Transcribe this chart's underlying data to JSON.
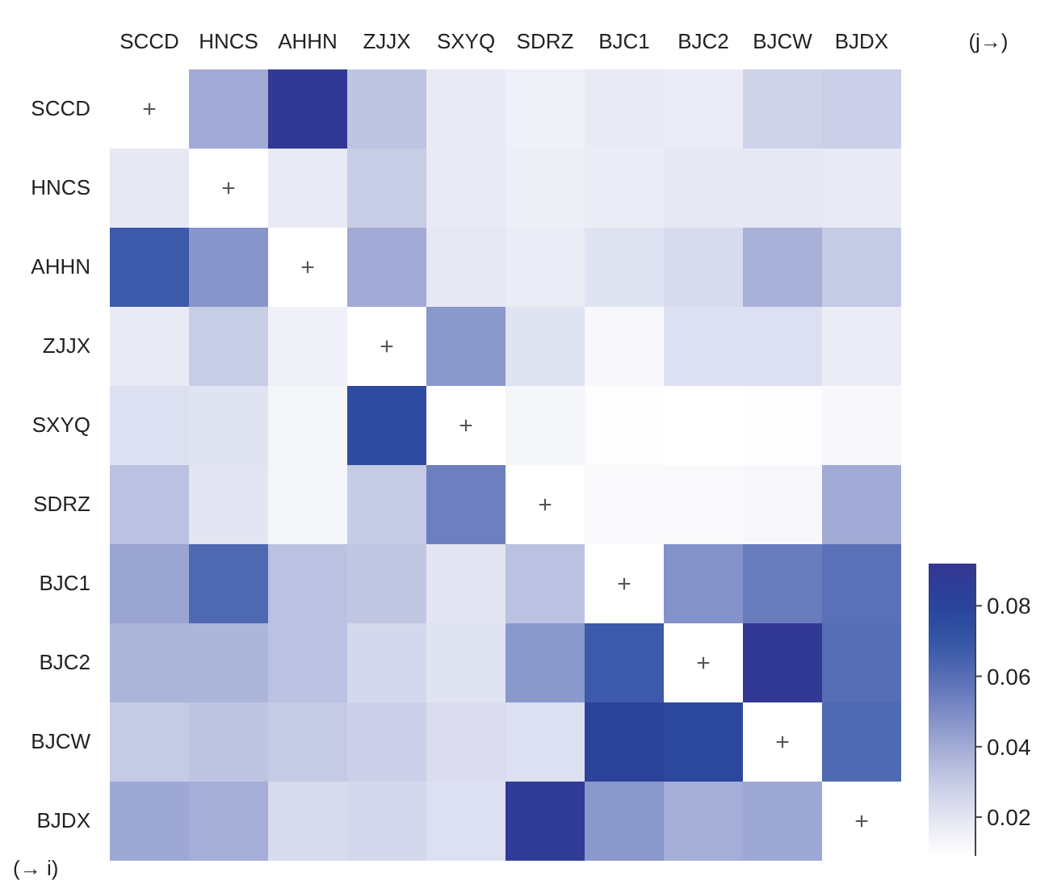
{
  "chart_data": {
    "type": "heatmap",
    "categories": [
      "SCCD",
      "HNCS",
      "AHHN",
      "ZJJX",
      "SXYQ",
      "SDRZ",
      "BJC1",
      "BJC2",
      "BJCW",
      "BJDX"
    ],
    "y_categories": [
      "SCCD",
      "HNCS",
      "AHHN",
      "ZJJX",
      "SXYQ",
      "SDRZ",
      "BJC1",
      "BJC2",
      "BJCW",
      "BJDX"
    ],
    "cells": [
      [
        null,
        0.04,
        0.09,
        0.032,
        0.018,
        0.015,
        0.018,
        0.017,
        0.027,
        0.028
      ],
      [
        0.019,
        null,
        0.018,
        0.029,
        0.018,
        0.016,
        0.017,
        0.019,
        0.019,
        0.018
      ],
      [
        0.068,
        0.047,
        null,
        0.04,
        0.019,
        0.017,
        0.021,
        0.024,
        0.038,
        0.03
      ],
      [
        0.018,
        0.029,
        0.015,
        null,
        0.046,
        0.021,
        0.012,
        0.022,
        0.022,
        0.017
      ],
      [
        0.022,
        0.021,
        0.013,
        0.075,
        null,
        0.013,
        0.01,
        0.009,
        0.01,
        0.012
      ],
      [
        0.033,
        0.02,
        0.013,
        0.03,
        0.054,
        null,
        0.011,
        0.011,
        0.012,
        0.04
      ],
      [
        0.042,
        0.062,
        0.033,
        0.031,
        0.02,
        0.033,
        null,
        0.048,
        0.055,
        0.059
      ],
      [
        0.037,
        0.037,
        0.033,
        0.025,
        0.021,
        0.046,
        0.068,
        null,
        0.09,
        0.06
      ],
      [
        0.03,
        0.032,
        0.03,
        0.028,
        0.023,
        0.022,
        0.082,
        0.078,
        null,
        0.062
      ],
      [
        0.041,
        0.039,
        0.024,
        0.025,
        0.022,
        0.088,
        0.046,
        0.039,
        0.041,
        null
      ]
    ],
    "cell_labels": [
      [
        "+",
        null,
        null,
        null,
        null,
        null,
        null,
        null,
        null,
        null
      ],
      [
        null,
        "+",
        null,
        null,
        null,
        null,
        null,
        null,
        null,
        null
      ],
      [
        null,
        null,
        "+",
        null,
        null,
        null,
        null,
        null,
        null,
        null
      ],
      [
        null,
        null,
        null,
        "+",
        null,
        null,
        null,
        null,
        null,
        null
      ],
      [
        null,
        null,
        null,
        null,
        "+",
        null,
        null,
        null,
        null,
        null
      ],
      [
        null,
        null,
        null,
        null,
        null,
        "+",
        null,
        null,
        null,
        null
      ],
      [
        null,
        null,
        null,
        null,
        null,
        null,
        "+",
        null,
        null,
        null
      ],
      [
        null,
        null,
        null,
        null,
        null,
        null,
        null,
        "+",
        null,
        null
      ],
      [
        null,
        null,
        null,
        null,
        null,
        null,
        null,
        null,
        "+",
        null
      ],
      [
        null,
        null,
        null,
        null,
        null,
        null,
        null,
        null,
        null,
        "+"
      ]
    ],
    "clim": [
      0.009,
      0.092
    ],
    "cticks": [
      0.02,
      0.04,
      0.06,
      0.08
    ],
    "annotations": [
      "(j→)",
      "(→ i)"
    ]
  }
}
